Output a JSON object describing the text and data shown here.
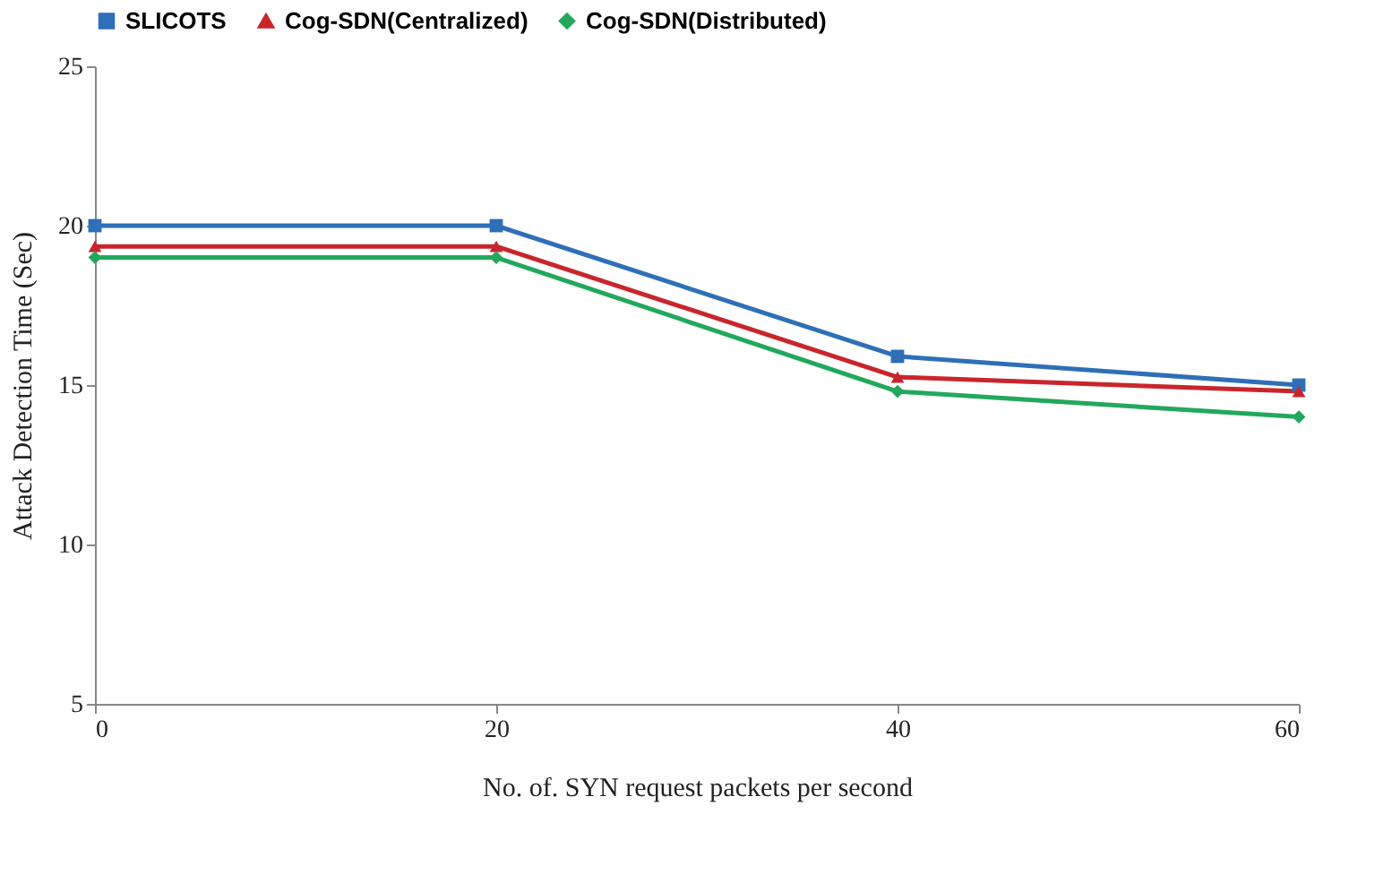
{
  "chart_data": {
    "type": "line",
    "xlabel": "No. of. SYN request packets per second",
    "ylabel": "Attack Detection Time (Sec)",
    "x": [
      0,
      20,
      40,
      60
    ],
    "series": [
      {
        "name": "SLICOTS",
        "color": "#2e6fb7",
        "marker": "square",
        "values": [
          20,
          20,
          15.9,
          15
        ]
      },
      {
        "name": "Cog-SDN(Centralized)",
        "color": "#c8262c",
        "marker": "triangle",
        "values": [
          19.35,
          19.35,
          15.25,
          14.8
        ]
      },
      {
        "name": "Cog-SDN(Distributed)",
        "color": "#22a85c",
        "marker": "diamond",
        "values": [
          19,
          19,
          14.8,
          14
        ]
      }
    ],
    "xlim": [
      0,
      60
    ],
    "xticks": [
      0,
      20,
      40,
      60
    ],
    "ylim": [
      5,
      25
    ],
    "yticks": [
      5,
      10,
      15,
      20,
      25
    ],
    "grid": false,
    "legend": "top",
    "line_style": "solid"
  }
}
